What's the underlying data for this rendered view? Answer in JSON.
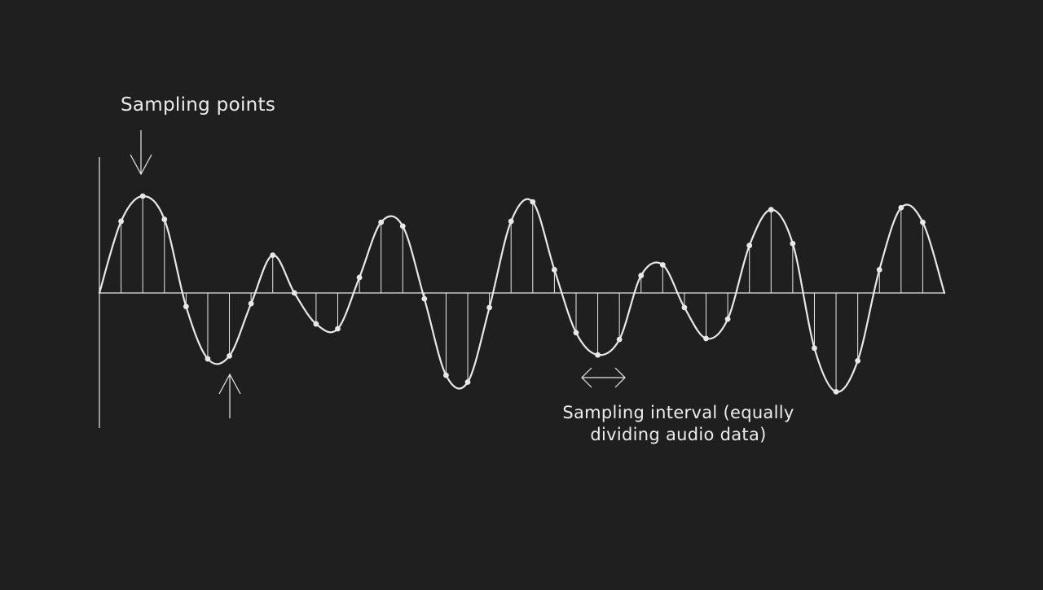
{
  "background": "#1f1f1f",
  "stroke_color": "#e8e8e8",
  "labels": {
    "sampling_points": "Sampling points",
    "sampling_interval_line1": "Sampling interval (equally",
    "sampling_interval_line2": "dividing audio data)"
  },
  "waveform": {
    "samples": [
      0.0,
      0.74,
      1.0,
      0.76,
      -0.14,
      -0.68,
      -0.65,
      -0.11,
      0.39,
      0.0,
      -0.32,
      -0.37,
      0.16,
      0.73,
      0.69,
      -0.06,
      -0.85,
      -0.92,
      -0.15,
      0.74,
      0.94,
      0.24,
      -0.41,
      -0.64,
      -0.48,
      0.18,
      0.29,
      -0.15,
      -0.47,
      -0.27,
      0.49,
      0.86,
      0.51,
      -0.57,
      -1.02,
      -0.7,
      0.24,
      0.88,
      0.73,
      0.0
    ]
  }
}
